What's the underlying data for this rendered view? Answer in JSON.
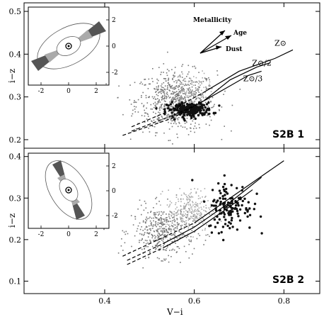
{
  "chart_data": [
    {
      "type": "scatter",
      "panel_label": "S2B 1",
      "xlabel": "",
      "ylabel": "i−z",
      "xlim": [
        0.22,
        0.88
      ],
      "ylim": [
        0.18,
        0.52
      ],
      "yticks": [
        "0.2",
        "0.3",
        "0.4",
        "0.5"
      ],
      "clouds": [
        {
          "color": "#777777",
          "cx": 0.56,
          "cy": 0.29,
          "sx": 0.045,
          "sy": 0.035,
          "n": 700,
          "marker": "dot"
        },
        {
          "color": "#aaaaaa",
          "cx": 0.59,
          "cy": 0.31,
          "sx": 0.02,
          "sy": 0.025,
          "n": 140,
          "marker": "dot"
        },
        {
          "color": "#111111",
          "cx": 0.59,
          "cy": 0.27,
          "sx": 0.025,
          "sy": 0.008,
          "n": 220,
          "marker": "filled-circle"
        }
      ],
      "model_tracks": [
        {
          "label": "Z⊙",
          "points": [
            [
              0.46,
              0.23
            ],
            [
              0.55,
              0.27
            ],
            [
              0.62,
              0.31
            ],
            [
              0.7,
              0.36
            ],
            [
              0.78,
              0.39
            ],
            [
              0.82,
              0.41
            ]
          ]
        },
        {
          "label": "Z⊙/2",
          "points": [
            [
              0.46,
              0.22
            ],
            [
              0.56,
              0.26
            ],
            [
              0.62,
              0.29
            ],
            [
              0.68,
              0.34
            ],
            [
              0.74,
              0.37
            ],
            [
              0.77,
              0.38
            ]
          ]
        },
        {
          "label": "Z⊙/3",
          "points": [
            [
              0.44,
              0.21
            ],
            [
              0.55,
              0.25
            ],
            [
              0.62,
              0.29
            ],
            [
              0.67,
              0.32
            ],
            [
              0.72,
              0.35
            ],
            [
              0.75,
              0.36
            ]
          ]
        }
      ],
      "vectors_legend": [
        "Metallicity",
        "Age",
        "Dust"
      ],
      "inset": {
        "xticks": [
          "-2",
          "0",
          "2"
        ],
        "yticks": [
          "2",
          "0",
          "-2"
        ]
      }
    },
    {
      "type": "scatter",
      "panel_label": "S2B 2",
      "xlabel": "V−i",
      "ylabel": "i−z",
      "xlim": [
        0.22,
        0.88
      ],
      "ylim": [
        0.07,
        0.42
      ],
      "xticks": [
        "0.4",
        "0.6",
        "0.8"
      ],
      "yticks": [
        "0.1",
        "0.2",
        "0.3",
        "0.4"
      ],
      "clouds": [
        {
          "color": "#777777",
          "cx": 0.53,
          "cy": 0.22,
          "sx": 0.035,
          "sy": 0.03,
          "n": 450,
          "marker": "dot"
        },
        {
          "color": "#aaaaaa",
          "cx": 0.59,
          "cy": 0.27,
          "sx": 0.025,
          "sy": 0.025,
          "n": 260,
          "marker": "dot"
        },
        {
          "color": "#111111",
          "cx": 0.68,
          "cy": 0.28,
          "sx": 0.025,
          "sy": 0.03,
          "n": 130,
          "marker": "filled-circle"
        }
      ],
      "model_tracks": [
        {
          "label": "",
          "points": [
            [
              0.44,
              0.16
            ],
            [
              0.52,
              0.2
            ],
            [
              0.6,
              0.24
            ],
            [
              0.68,
              0.3
            ],
            [
              0.76,
              0.36
            ],
            [
              0.8,
              0.39
            ]
          ]
        },
        {
          "label": "",
          "points": [
            [
              0.45,
              0.15
            ],
            [
              0.53,
              0.19
            ],
            [
              0.6,
              0.23
            ],
            [
              0.68,
              0.29
            ],
            [
              0.75,
              0.35
            ]
          ]
        },
        {
          "label": "",
          "points": [
            [
              0.45,
              0.14
            ],
            [
              0.53,
              0.18
            ],
            [
              0.6,
              0.22
            ],
            [
              0.68,
              0.28
            ],
            [
              0.73,
              0.32
            ]
          ]
        }
      ],
      "inset": {
        "xticks": [
          "-2",
          "0",
          "2"
        ],
        "yticks": [
          "2",
          "0",
          "-2"
        ]
      }
    }
  ],
  "colors": {
    "dark_gray": "#777777",
    "light_gray": "#aaaaaa",
    "black": "#111111"
  }
}
